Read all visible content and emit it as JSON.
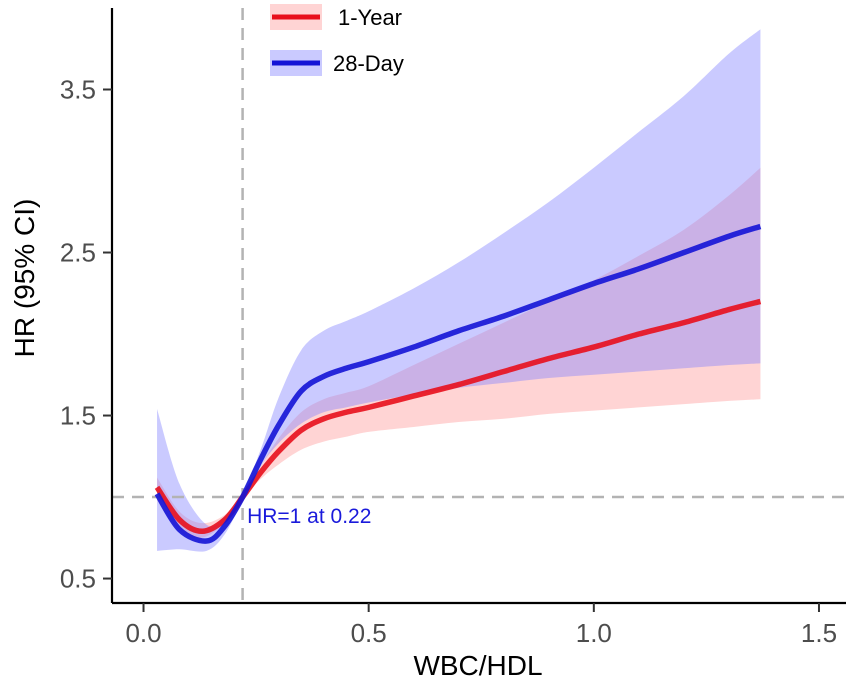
{
  "chart_data": {
    "type": "line",
    "title": "",
    "xlabel": "WBC/HDL",
    "ylabel": "HR (95% CI)",
    "xlim": [
      -0.07,
      1.56
    ],
    "ylim": [
      0.35,
      4.0
    ],
    "x_ticks": [
      0.0,
      0.5,
      1.0,
      1.5
    ],
    "x_tick_labels": [
      "0.0",
      "0.5",
      "1.0",
      "1.5"
    ],
    "y_ticks": [
      0.5,
      1.5,
      2.5,
      3.5
    ],
    "y_tick_labels": [
      "0.5",
      "1.5",
      "2.5",
      "3.5"
    ],
    "reference_lines": {
      "hr": 1.0,
      "cutoff": 0.22
    },
    "annotation": {
      "text": "HR=1 at 0.22",
      "x": 0.23,
      "y": 0.84,
      "color": "#1a1adb"
    },
    "legend_position": "top-left",
    "series": [
      {
        "name": "1-Year",
        "line_color": "#e8101c",
        "band_color": "#ff9999",
        "x": [
          0.03,
          0.08,
          0.13,
          0.18,
          0.22,
          0.26,
          0.3,
          0.35,
          0.4,
          0.45,
          0.5,
          0.6,
          0.7,
          0.8,
          0.9,
          1.0,
          1.1,
          1.2,
          1.3,
          1.37
        ],
        "y": [
          1.06,
          0.86,
          0.79,
          0.86,
          1.0,
          1.15,
          1.28,
          1.41,
          1.48,
          1.52,
          1.55,
          1.62,
          1.69,
          1.77,
          1.85,
          1.92,
          2.0,
          2.07,
          2.15,
          2.2
        ],
        "lower": [
          0.98,
          0.79,
          0.75,
          0.84,
          0.99,
          1.11,
          1.2,
          1.29,
          1.34,
          1.37,
          1.4,
          1.43,
          1.46,
          1.48,
          1.51,
          1.53,
          1.55,
          1.57,
          1.59,
          1.6
        ],
        "upper": [
          1.12,
          0.91,
          0.84,
          0.89,
          1.01,
          1.19,
          1.36,
          1.52,
          1.6,
          1.64,
          1.68,
          1.81,
          1.94,
          2.07,
          2.2,
          2.33,
          2.48,
          2.64,
          2.85,
          3.02
        ]
      },
      {
        "name": "28-Day",
        "line_color": "#1414d6",
        "band_color": "#8080ff",
        "x": [
          0.03,
          0.08,
          0.14,
          0.18,
          0.22,
          0.26,
          0.3,
          0.35,
          0.4,
          0.45,
          0.5,
          0.6,
          0.7,
          0.8,
          0.9,
          1.0,
          1.1,
          1.2,
          1.3,
          1.37
        ],
        "y": [
          1.02,
          0.8,
          0.73,
          0.82,
          1.0,
          1.23,
          1.44,
          1.65,
          1.74,
          1.79,
          1.83,
          1.92,
          2.02,
          2.11,
          2.21,
          2.31,
          2.4,
          2.5,
          2.6,
          2.66
        ],
        "lower": [
          0.67,
          0.68,
          0.67,
          0.77,
          0.98,
          1.19,
          1.33,
          1.45,
          1.52,
          1.55,
          1.58,
          1.63,
          1.67,
          1.7,
          1.73,
          1.75,
          1.77,
          1.79,
          1.81,
          1.82
        ],
        "upper": [
          1.54,
          1.08,
          0.83,
          0.88,
          1.02,
          1.29,
          1.61,
          1.9,
          2.02,
          2.08,
          2.14,
          2.28,
          2.44,
          2.62,
          2.81,
          3.02,
          3.24,
          3.46,
          3.72,
          3.87
        ]
      }
    ]
  }
}
